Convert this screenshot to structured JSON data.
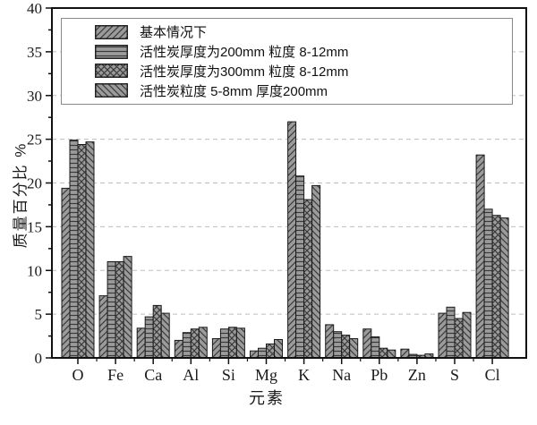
{
  "chart_data": {
    "type": "bar",
    "title": "",
    "xlabel": "元素",
    "ylabel": "质量百分比 %",
    "ylim": [
      0,
      40
    ],
    "ytick_step": 5,
    "ytick_minor_step": 2.5,
    "grid": "horizontal dashed at major ticks",
    "legend_position": "top inside, boxed, spanning plot width",
    "categories": [
      "O",
      "Fe",
      "Ca",
      "Al",
      "Si",
      "Mg",
      "K",
      "Na",
      "Pb",
      "Zn",
      "S",
      "Cl"
    ],
    "series": [
      {
        "name": "基本情况下",
        "hatch": "///",
        "values": [
          19.4,
          7.1,
          3.4,
          2.0,
          2.2,
          0.8,
          27.0,
          3.8,
          3.3,
          1.0,
          5.1,
          23.2
        ]
      },
      {
        "name": "活性炭厚度为200mm 粒度 8-12mm",
        "hatch": "---",
        "values": [
          24.9,
          11.0,
          4.7,
          2.9,
          3.3,
          1.1,
          20.8,
          3.0,
          2.4,
          0.4,
          5.8,
          17.0
        ]
      },
      {
        "name": "活性炭厚度为300mm 粒度 8-12mm",
        "hatch": "xxx",
        "values": [
          24.4,
          11.0,
          6.0,
          3.3,
          3.5,
          1.6,
          18.1,
          2.6,
          1.1,
          0.3,
          4.5,
          16.3
        ]
      },
      {
        "name": "活性炭粒度 5-8mm 厚度200mm",
        "hatch": "\\\\\\",
        "values": [
          24.7,
          11.6,
          5.1,
          3.5,
          3.4,
          2.1,
          19.7,
          2.2,
          0.9,
          0.45,
          5.2,
          16.0
        ]
      }
    ],
    "colors": {
      "bar_fill": "#9b9b9b",
      "hatch_line": "#3a3a3a",
      "bar_edge": "#1a1a1a",
      "grid_line": "#bdbdbd",
      "axis_line": "#111111",
      "background": "#ffffff",
      "text": "#1a1a1a",
      "legend_border": "#8a8a8a"
    }
  }
}
